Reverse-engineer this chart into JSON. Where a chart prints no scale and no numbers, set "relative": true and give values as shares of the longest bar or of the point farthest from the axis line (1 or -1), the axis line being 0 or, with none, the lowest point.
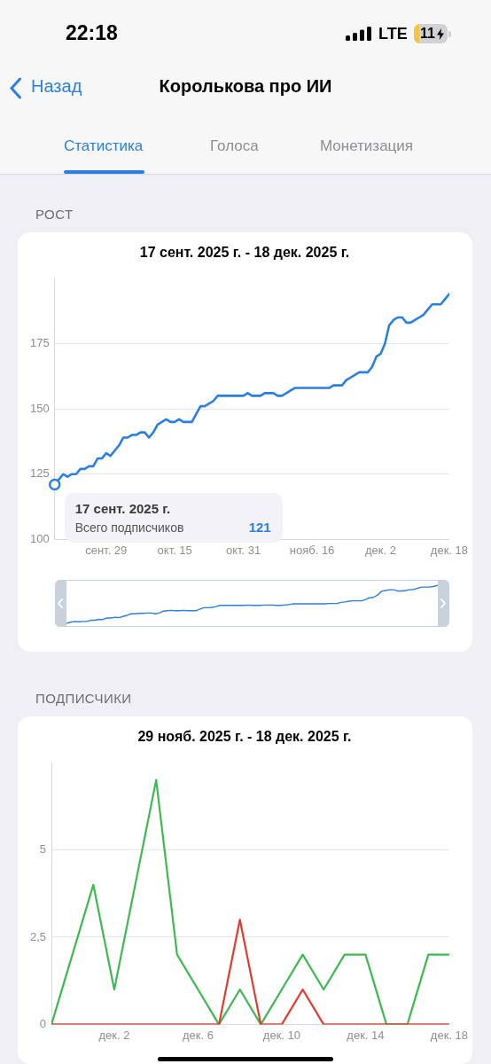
{
  "chart_data": [
    {
      "type": "line",
      "title": "РОСТ",
      "subtitle": "17 сент. 2025 г. - 18 дек. 2025 г.",
      "x": [
        "2025-09-17",
        "2025-09-18",
        "2025-09-19",
        "2025-09-20",
        "2025-09-21",
        "2025-09-22",
        "2025-09-23",
        "2025-09-24",
        "2025-09-25",
        "2025-09-26",
        "2025-09-27",
        "2025-09-28",
        "2025-09-29",
        "2025-09-30",
        "2025-10-01",
        "2025-10-02",
        "2025-10-03",
        "2025-10-04",
        "2025-10-05",
        "2025-10-06",
        "2025-10-07",
        "2025-10-08",
        "2025-10-09",
        "2025-10-10",
        "2025-10-11",
        "2025-10-12",
        "2025-10-13",
        "2025-10-14",
        "2025-10-15",
        "2025-10-16",
        "2025-10-17",
        "2025-10-18",
        "2025-10-19",
        "2025-10-20",
        "2025-10-21",
        "2025-10-22",
        "2025-10-23",
        "2025-10-24",
        "2025-10-25",
        "2025-10-26",
        "2025-10-27",
        "2025-10-28",
        "2025-10-29",
        "2025-10-30",
        "2025-10-31",
        "2025-11-01",
        "2025-11-02",
        "2025-11-03",
        "2025-11-04",
        "2025-11-05",
        "2025-11-06",
        "2025-11-07",
        "2025-11-08",
        "2025-11-09",
        "2025-11-10",
        "2025-11-11",
        "2025-11-12",
        "2025-11-13",
        "2025-11-14",
        "2025-11-15",
        "2025-11-16",
        "2025-11-17",
        "2025-11-18",
        "2025-11-19",
        "2025-11-20",
        "2025-11-21",
        "2025-11-22",
        "2025-11-23",
        "2025-11-24",
        "2025-11-25",
        "2025-11-26",
        "2025-11-27",
        "2025-11-28",
        "2025-11-29",
        "2025-11-30",
        "2025-12-01",
        "2025-12-02",
        "2025-12-03",
        "2025-12-04",
        "2025-12-05",
        "2025-12-06",
        "2025-12-07",
        "2025-12-08",
        "2025-12-09",
        "2025-12-10",
        "2025-12-11",
        "2025-12-12",
        "2025-12-13",
        "2025-12-14",
        "2025-12-15",
        "2025-12-16",
        "2025-12-17",
        "2025-12-18"
      ],
      "series": [
        {
          "name": "Всего подписчиков",
          "color": "#2b7fe0",
          "values": [
            121,
            123,
            125,
            124,
            125,
            125,
            127,
            127,
            128,
            128,
            131,
            131,
            133,
            132,
            134,
            136,
            139,
            139,
            140,
            140,
            141,
            141,
            139,
            141,
            144,
            145,
            146,
            145,
            145,
            146,
            145,
            145,
            145,
            148,
            151,
            151,
            152,
            153,
            155,
            155,
            155,
            155,
            155,
            155,
            155,
            156,
            155,
            155,
            155,
            156,
            156,
            156,
            155,
            155,
            156,
            157,
            158,
            158,
            158,
            158,
            158,
            158,
            158,
            158,
            158,
            159,
            159,
            159,
            161,
            162,
            163,
            164,
            164,
            164,
            166,
            170,
            171,
            175,
            182,
            184,
            185,
            185,
            183,
            183,
            184,
            185,
            186,
            188,
            190,
            190,
            190,
            192,
            194
          ]
        }
      ],
      "xlim": [
        "2025-09-17",
        "2025-12-18"
      ],
      "xticks": [
        {
          "value": "2025-09-29",
          "label": "сент. 29"
        },
        {
          "value": "2025-10-15",
          "label": "окт. 15"
        },
        {
          "value": "2025-10-31",
          "label": "окт. 31"
        },
        {
          "value": "2025-11-16",
          "label": "нояб. 16"
        },
        {
          "value": "2025-12-02",
          "label": "дек. 2"
        },
        {
          "value": "2025-12-18",
          "label": "дек. 18"
        }
      ],
      "ylim": [
        100,
        200
      ],
      "yticks": [
        100,
        125,
        150,
        175
      ],
      "grid": "y",
      "annotations": [
        "22:18",
        "LTE",
        "11",
        "Назад",
        "Королькова про ИИ",
        "Статистика",
        "Голоса",
        "Монетизация",
        {
          "text": "17 сент. 2025 г.",
          "x": "2025-09-17",
          "y": 121
        },
        "121"
      ]
    },
    {
      "type": "line",
      "relative": true,
      "categories": [
        null,
        null,
        null,
        null,
        null,
        null,
        null,
        null,
        null,
        null,
        null,
        null,
        null,
        null,
        null,
        null,
        null,
        null,
        null,
        null,
        null,
        null,
        null,
        null,
        null,
        null,
        null,
        null,
        null,
        null,
        null,
        null,
        null,
        null,
        null,
        null,
        null,
        null,
        null,
        null,
        null,
        null,
        null,
        null,
        null,
        null,
        null,
        null,
        null,
        null,
        null,
        null,
        null,
        null,
        null,
        null,
        null,
        null,
        null,
        null,
        null,
        null,
        null,
        null,
        null,
        null,
        null,
        null,
        null,
        null,
        null,
        null,
        null,
        null,
        null,
        null,
        null,
        null,
        null,
        null,
        null,
        null,
        null,
        null,
        null,
        null,
        null,
        null,
        null,
        null,
        null,
        null,
        null
      ],
      "series": [
        {
          "color": "#2b7fe0",
          "values": [
            0,
            0.03,
            0.05,
            0.04,
            0.05,
            0.05,
            0.08,
            0.08,
            0.1,
            0.1,
            0.14,
            0.14,
            0.16,
            0.15,
            0.18,
            0.21,
            0.25,
            0.25,
            0.26,
            0.26,
            0.27,
            0.27,
            0.25,
            0.27,
            0.32,
            0.33,
            0.34,
            0.33,
            0.33,
            0.34,
            0.33,
            0.33,
            0.33,
            0.37,
            0.41,
            0.41,
            0.42,
            0.44,
            0.47,
            0.47,
            0.47,
            0.47,
            0.47,
            0.47,
            0.47,
            0.48,
            0.47,
            0.47,
            0.47,
            0.48,
            0.48,
            0.48,
            0.47,
            0.47,
            0.48,
            0.49,
            0.51,
            0.51,
            0.51,
            0.51,
            0.51,
            0.51,
            0.51,
            0.51,
            0.51,
            0.52,
            0.52,
            0.52,
            0.55,
            0.56,
            0.58,
            0.59,
            0.59,
            0.59,
            0.62,
            0.67,
            0.68,
            0.74,
            0.84,
            0.86,
            0.88,
            0.88,
            0.85,
            0.85,
            0.86,
            0.88,
            0.89,
            0.92,
            0.95,
            0.95,
            0.95,
            0.97,
            1
          ]
        }
      ]
    },
    {
      "type": "line",
      "title": "ПОДПИСЧИКИ",
      "subtitle": "29 нояб. 2025 г. - 18 дек. 2025 г.",
      "x": [
        "2025-11-29",
        "2025-11-30",
        "2025-12-01",
        "2025-12-02",
        "2025-12-03",
        "2025-12-04",
        "2025-12-05",
        "2025-12-06",
        "2025-12-07",
        "2025-12-08",
        "2025-12-09",
        "2025-12-10",
        "2025-12-11",
        "2025-12-12",
        "2025-12-13",
        "2025-12-14",
        "2025-12-15",
        "2025-12-16",
        "2025-12-17",
        "2025-12-18"
      ],
      "series": [
        {
          "color": "#3cb950",
          "values": [
            0,
            2,
            4,
            1,
            4,
            7,
            2,
            1,
            0,
            1,
            0,
            1,
            2,
            1,
            2,
            2,
            0,
            0,
            2,
            2
          ]
        },
        {
          "color": "#e5392f",
          "values": [
            0,
            0,
            0,
            0,
            0,
            0,
            0,
            0,
            0,
            3,
            0,
            0,
            1,
            0,
            0,
            0,
            0,
            0,
            0,
            0
          ]
        }
      ],
      "xlim": [
        "2025-11-29",
        "2025-12-18"
      ],
      "xticks": [
        {
          "value": "2025-12-02",
          "label": "дек. 2"
        },
        {
          "value": "2025-12-06",
          "label": "дек. 6"
        },
        {
          "value": "2025-12-10",
          "label": "дек. 10"
        },
        {
          "value": "2025-12-14",
          "label": "дек. 14"
        },
        {
          "value": "2025-12-18",
          "label": "дек. 18"
        }
      ],
      "ylim": [
        0,
        7.5
      ],
      "yticks": [
        0,
        {
          "value": 2.5,
          "label": "2,5"
        },
        5
      ],
      "grid": "y"
    }
  ]
}
